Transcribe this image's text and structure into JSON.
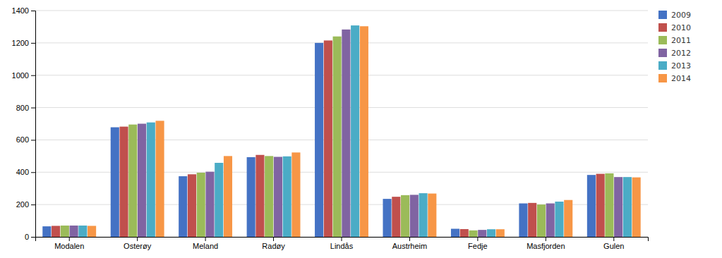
{
  "chart_data": {
    "type": "bar",
    "categories": [
      "Modalen",
      "Osterøy",
      "Meland",
      "Radøy",
      "Lindås",
      "Austrheim",
      "Fedje",
      "Masfjorden",
      "Gulen"
    ],
    "series": [
      {
        "name": "2009",
        "color": "#4472C4",
        "values": [
          65,
          678,
          375,
          493,
          1200,
          235,
          50,
          207,
          383
        ]
      },
      {
        "name": "2010",
        "color": "#C0504D",
        "values": [
          68,
          682,
          387,
          507,
          1215,
          248,
          48,
          210,
          390
        ]
      },
      {
        "name": "2011",
        "color": "#9BBB59",
        "values": [
          70,
          695,
          397,
          500,
          1240,
          258,
          40,
          200,
          393
        ]
      },
      {
        "name": "2012",
        "color": "#8064A2",
        "values": [
          70,
          700,
          403,
          495,
          1283,
          260,
          43,
          207,
          370
        ]
      },
      {
        "name": "2013",
        "color": "#4BACC6",
        "values": [
          70,
          708,
          458,
          498,
          1308,
          270,
          47,
          218,
          370
        ]
      },
      {
        "name": "2014",
        "color": "#F79646",
        "values": [
          68,
          718,
          500,
          522,
          1303,
          268,
          47,
          228,
          368
        ]
      }
    ],
    "ylim": [
      0,
      1400
    ],
    "yticks": [
      0,
      200,
      400,
      600,
      800,
      1000,
      1200,
      1400
    ],
    "grid": true,
    "legend": "upper right"
  }
}
